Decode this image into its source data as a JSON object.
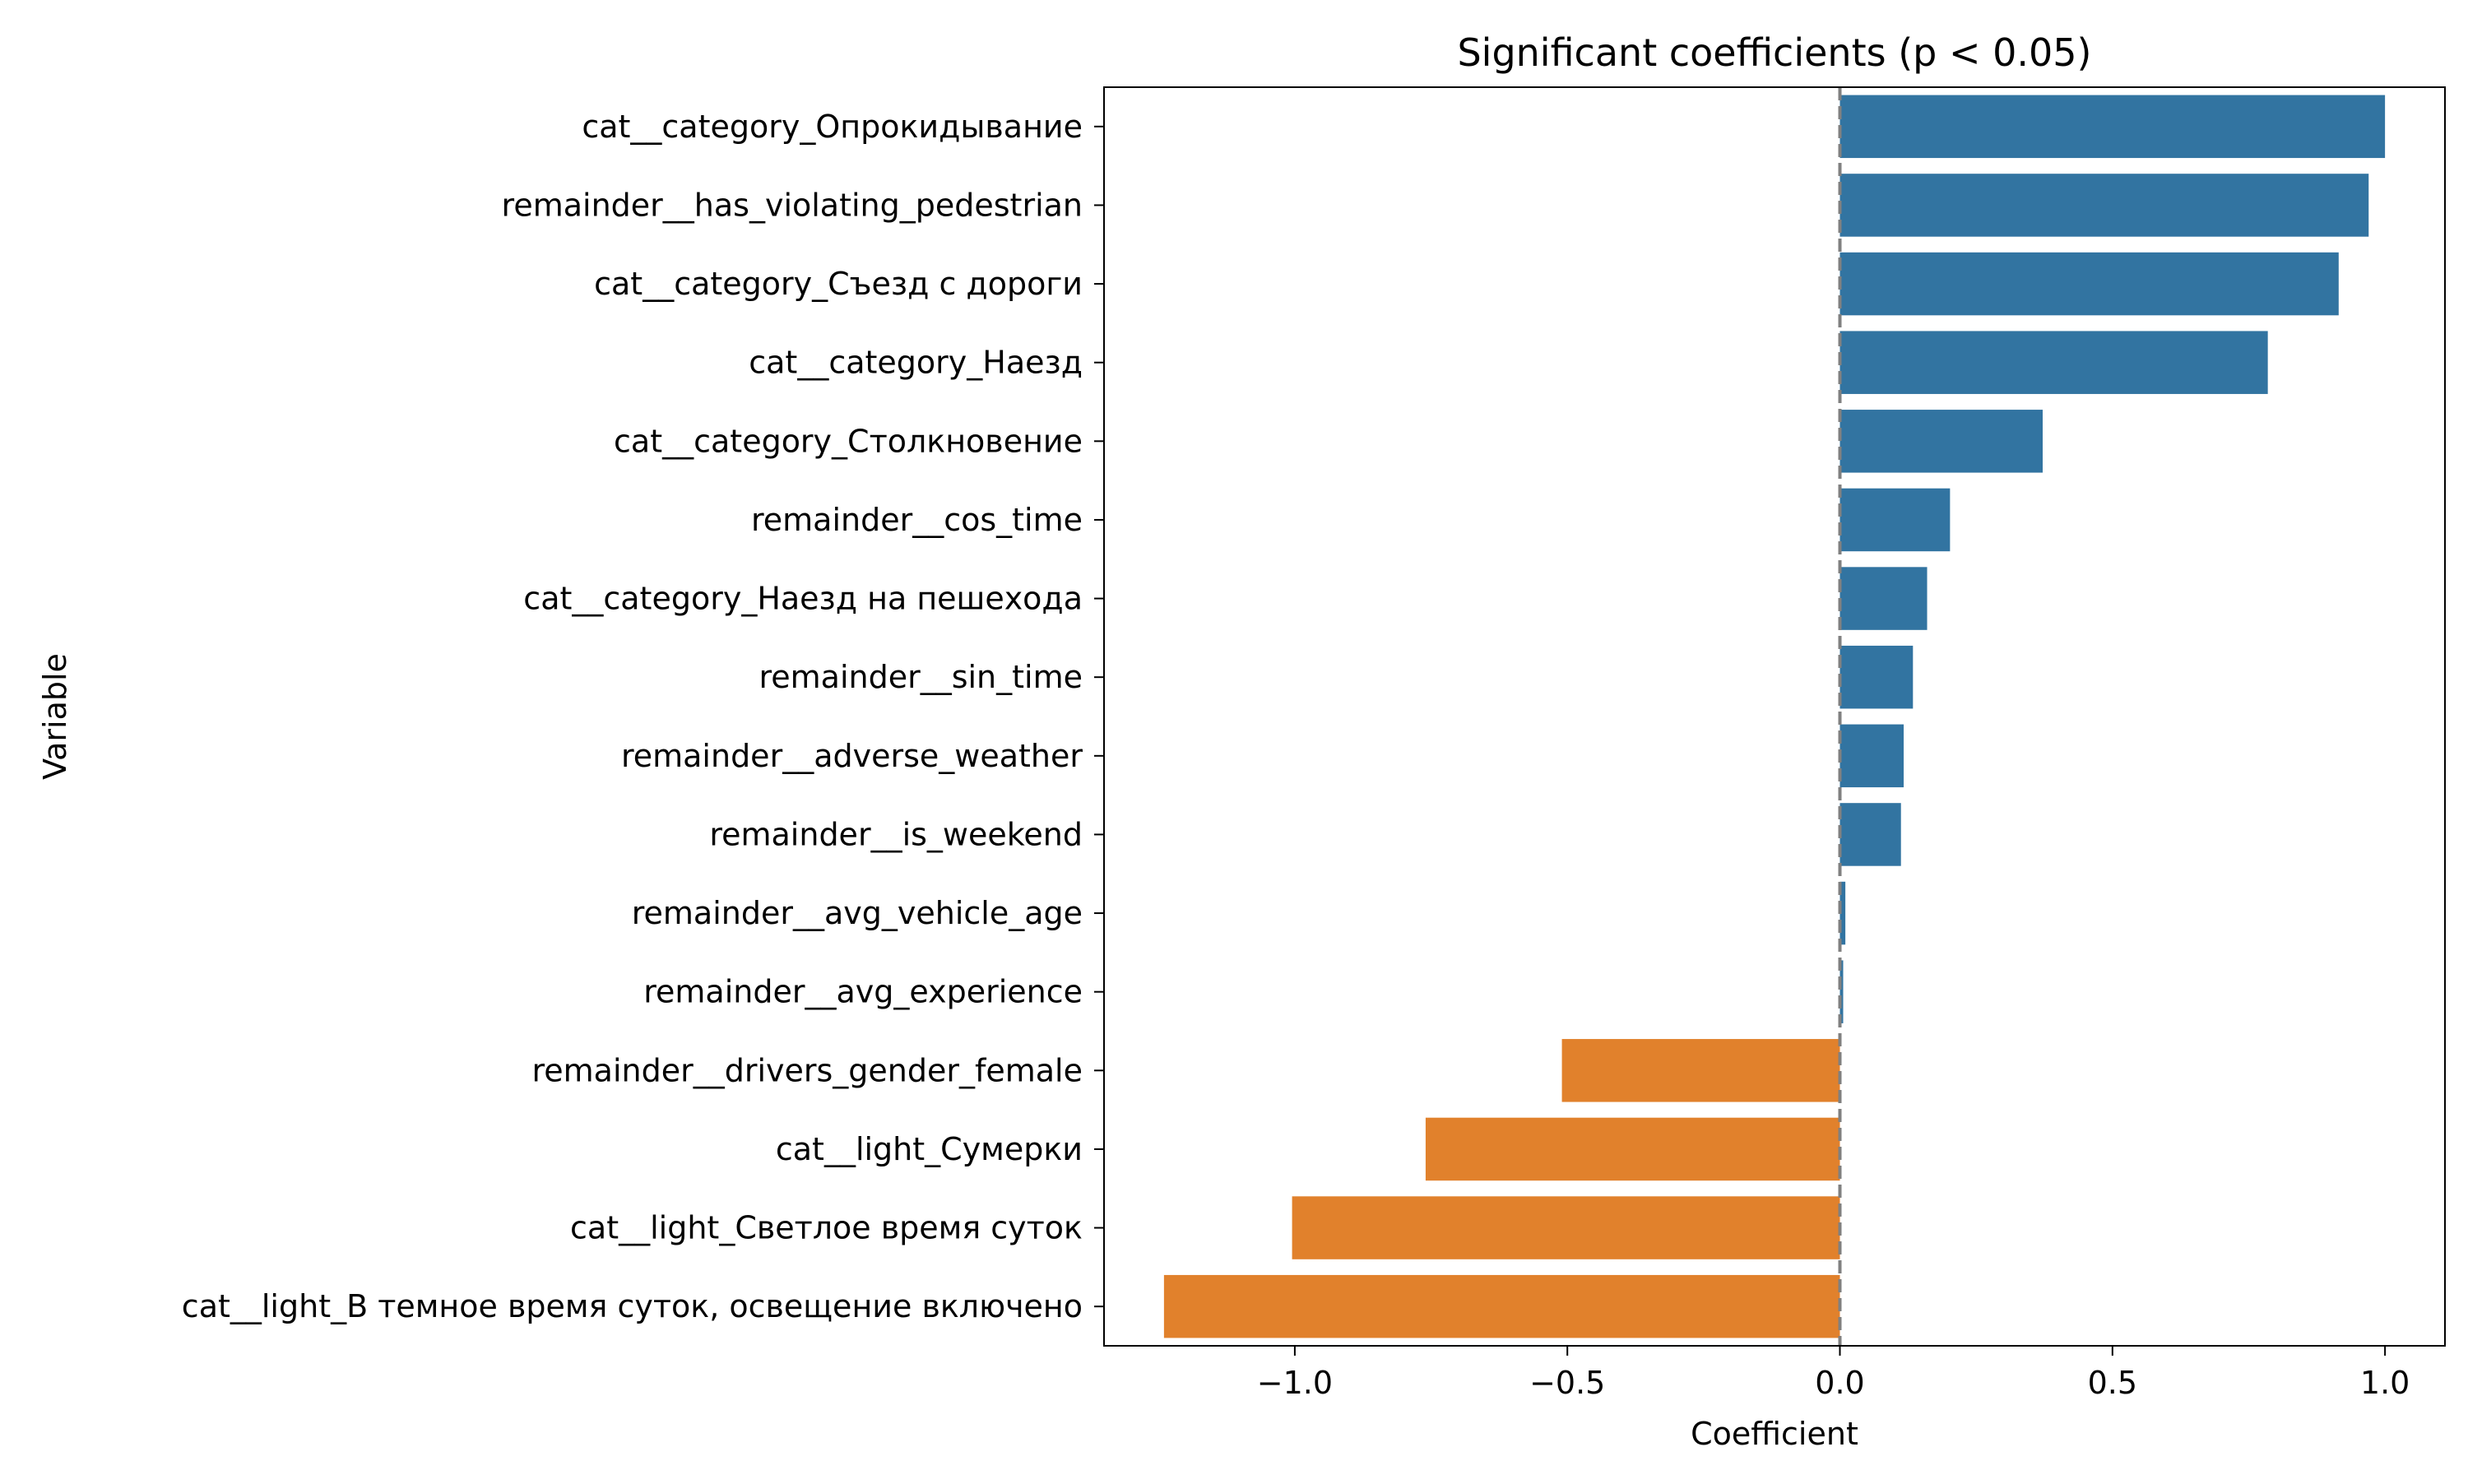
{
  "chart_data": {
    "type": "bar",
    "orientation": "horizontal",
    "title": "Significant coefficients (p < 0.05)",
    "xlabel": "Coefficient",
    "ylabel": "Variable",
    "xlim": [
      -1.35,
      1.11
    ],
    "xticks": [
      {
        "value": -1.0,
        "label": "−1.0"
      },
      {
        "value": -0.5,
        "label": "−0.5"
      },
      {
        "value": 0.0,
        "label": "0.0"
      },
      {
        "value": 0.5,
        "label": "0.5"
      },
      {
        "value": 1.0,
        "label": "1.0"
      }
    ],
    "grid": false,
    "reference_line": {
      "x": 0,
      "style": "dashed",
      "color": "#808080"
    },
    "colors": {
      "positive": "#3274a1",
      "negative": "#e1812c"
    },
    "categories": [
      "cat__category_Опрокидывание",
      "remainder__has_violating_pedestrian",
      "cat__category_Съезд с дороги",
      "cat__category_Наезд",
      "cat__category_Столкновение",
      "remainder__cos_time",
      "cat__category_Наезд на пешехода",
      "remainder__sin_time",
      "remainder__adverse_weather",
      "remainder__is_weekend",
      "remainder__avg_vehicle_age",
      "remainder__avg_experience",
      "remainder__drivers_gender_female",
      "cat__light_Сумерки",
      "cat__light_Светлое время суток",
      "cat__light_В темное время суток, освещение включено"
    ],
    "values": [
      1.0,
      0.97,
      0.915,
      0.785,
      0.372,
      0.202,
      0.16,
      0.134,
      0.117,
      0.112,
      0.01,
      0.006,
      -0.51,
      -0.76,
      -1.005,
      -1.24
    ]
  }
}
